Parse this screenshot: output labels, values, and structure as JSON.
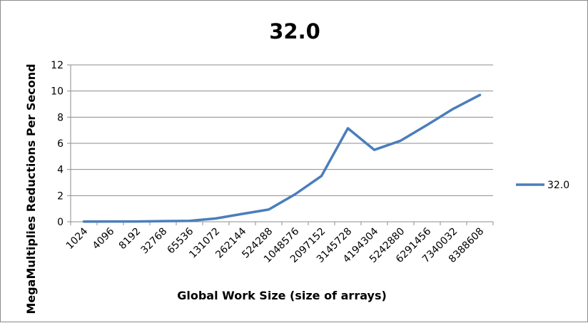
{
  "chart_data": {
    "type": "line",
    "title": "32.0",
    "xlabel": "Global Work Size (size of arrays)",
    "ylabel": "MegaMultiplies Reductions Per Second",
    "categories": [
      "1024",
      "4096",
      "8192",
      "32768",
      "65536",
      "131072",
      "262144",
      "524288",
      "1048576",
      "2097152",
      "3145728",
      "4194304",
      "5242880",
      "6291456",
      "7340032",
      "8388608"
    ],
    "series": [
      {
        "name": "32.0",
        "color": "#4a7ebb",
        "values": [
          0.01,
          0.02,
          0.02,
          0.05,
          0.07,
          0.25,
          0.6,
          0.93,
          2.1,
          3.5,
          7.15,
          5.5,
          6.2,
          7.4,
          8.65,
          9.7
        ]
      }
    ],
    "ylim": [
      0,
      12
    ],
    "yticks": [
      0,
      2,
      4,
      6,
      8,
      10,
      12
    ],
    "grid": true,
    "legend_position": "right"
  }
}
